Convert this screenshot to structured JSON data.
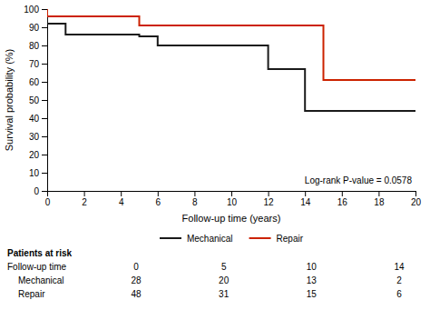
{
  "chart_data": {
    "type": "line",
    "xlabel": "Follow-up time (years)",
    "ylabel": "Survival probability (%)",
    "annotation": "Log-rank P-value = 0.0578",
    "series": [
      {
        "name": "Mechanical",
        "color": "#1a1a1a",
        "x": [
          0,
          0,
          1,
          1,
          2,
          2,
          5,
          5,
          6,
          6,
          7,
          7,
          10,
          10,
          12,
          12,
          13,
          13,
          14,
          14,
          20
        ],
        "values": [
          100,
          92,
          92,
          86,
          86,
          86,
          86,
          85,
          85,
          80,
          80,
          80,
          80,
          80,
          80,
          67,
          67,
          67,
          67,
          44,
          44
        ]
      },
      {
        "name": "Repair",
        "color": "#cc2200",
        "x": [
          0,
          0,
          1,
          1,
          5,
          5,
          7,
          7,
          15,
          15,
          20
        ],
        "values": [
          100,
          96,
          96,
          96,
          96,
          91,
          91,
          91,
          91,
          61,
          61
        ]
      }
    ],
    "xlim": [
      0,
      20
    ],
    "ylim": [
      0,
      100
    ],
    "xticks": [
      0,
      2,
      4,
      6,
      8,
      10,
      12,
      14,
      16,
      18,
      20
    ],
    "yticks": [
      0,
      10,
      20,
      30,
      40,
      50,
      60,
      70,
      80,
      90,
      100
    ],
    "grid": false,
    "legend": "bottom",
    "table": {
      "title": "Patients at risk",
      "row_labels": [
        "Follow-up time",
        "Mechanical",
        "Repair"
      ],
      "rows": [
        [
          0,
          5,
          10,
          14
        ],
        [
          28,
          20,
          13,
          2
        ],
        [
          48,
          31,
          15,
          6
        ]
      ]
    }
  }
}
